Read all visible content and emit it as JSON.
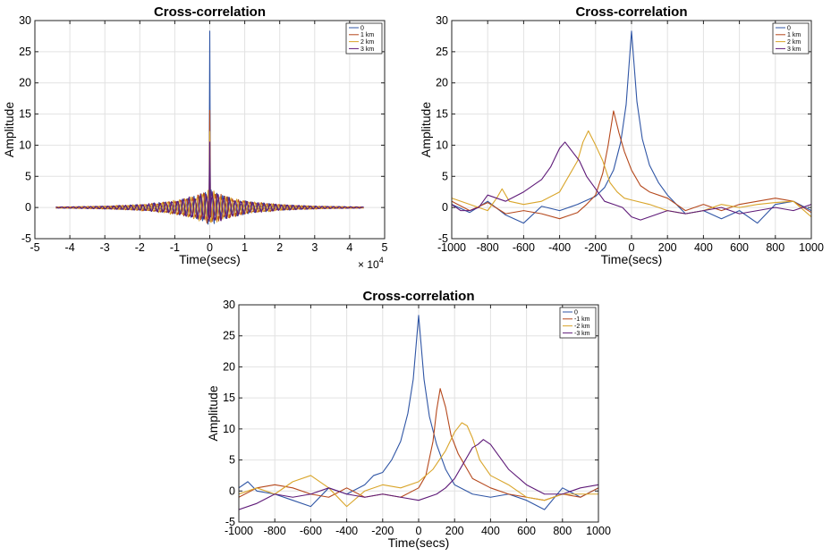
{
  "chart_data": [
    {
      "type": "line",
      "title": "Cross-correlation",
      "xlabel": "Time(secs)",
      "ylabel": "Amplitude",
      "xlim": [
        -5,
        5
      ],
      "ylim": [
        -5,
        30
      ],
      "xticks": [
        "-5",
        "-4",
        "-3",
        "-2",
        "-1",
        "0",
        "1",
        "2",
        "3",
        "4",
        "5"
      ],
      "yticks": [
        "-5",
        "0",
        "5",
        "10",
        "15",
        "20",
        "25",
        "30"
      ],
      "x_exponent_base": "× 10",
      "x_exponent_power": "4",
      "grid": true,
      "legend": "top-right",
      "legend_entries": [
        "0",
        "1 km",
        "2 km",
        "3 km"
      ],
      "series": [
        {
          "name": "0",
          "color": "#2f55a5",
          "peak_x": 0,
          "peak_y": 28.3
        },
        {
          "name": "1 km",
          "color": "#b5481c",
          "peak_x": 0,
          "peak_y": 15.6
        },
        {
          "name": "2 km",
          "color": "#d9a52a",
          "peak_x": 0,
          "peak_y": 12.2
        },
        {
          "name": "3 km",
          "color": "#5e1a78",
          "peak_x": 0,
          "peak_y": 10.5
        }
      ]
    },
    {
      "type": "line",
      "title": "Cross-correlation",
      "xlabel": "Time(secs)",
      "ylabel": "Amplitude",
      "xlim": [
        -1000,
        1000
      ],
      "ylim": [
        -5,
        30
      ],
      "xticks": [
        "-1000",
        "-800",
        "-600",
        "-400",
        "-200",
        "0",
        "200",
        "400",
        "600",
        "800",
        "1000"
      ],
      "yticks": [
        "-5",
        "0",
        "5",
        "10",
        "15",
        "20",
        "25",
        "30"
      ],
      "grid": true,
      "legend": "top-right",
      "legend_entries": [
        "0",
        "1 km",
        "2 km",
        "3 km"
      ],
      "series": [
        {
          "name": "0",
          "color": "#2f55a5",
          "x": [
            -1000,
            -900,
            -800,
            -700,
            -600,
            -500,
            -400,
            -300,
            -200,
            -150,
            -100,
            -60,
            -30,
            0,
            30,
            60,
            100,
            150,
            200,
            300,
            400,
            500,
            600,
            700,
            800,
            900,
            1000
          ],
          "y": [
            0.5,
            -0.8,
            1.0,
            -1.2,
            -2.5,
            0.2,
            -0.5,
            0.5,
            1.8,
            3.2,
            6.0,
            10.5,
            16.5,
            28.3,
            17.0,
            11.0,
            6.8,
            4.0,
            2.0,
            -1.0,
            -0.5,
            -1.8,
            -0.5,
            -2.5,
            0.5,
            1.0,
            -0.5
          ]
        },
        {
          "name": "1 km",
          "color": "#b5481c",
          "x": [
            -1000,
            -900,
            -800,
            -700,
            -600,
            -500,
            -400,
            -300,
            -250,
            -200,
            -160,
            -130,
            -100,
            -70,
            -40,
            0,
            50,
            100,
            200,
            300,
            400,
            500,
            600,
            700,
            800,
            900,
            1000
          ],
          "y": [
            1.0,
            -0.5,
            0.8,
            -1.0,
            -0.5,
            -1.0,
            -1.8,
            -0.8,
            0.5,
            2.0,
            5.5,
            10.0,
            15.5,
            12.0,
            9.0,
            6.0,
            3.5,
            2.5,
            1.5,
            -0.5,
            0.5,
            -0.5,
            0.5,
            1.0,
            1.5,
            1.0,
            -0.8
          ]
        },
        {
          "name": "2 km",
          "color": "#d9a52a",
          "x": [
            -1000,
            -900,
            -850,
            -800,
            -750,
            -720,
            -680,
            -600,
            -500,
            -400,
            -350,
            -300,
            -270,
            -240,
            -200,
            -160,
            -120,
            -80,
            -40,
            0,
            100,
            200,
            300,
            400,
            500,
            600,
            700,
            800,
            900,
            1000
          ],
          "y": [
            1.5,
            0.5,
            0.0,
            -0.5,
            1.5,
            3.0,
            1.0,
            0.5,
            1.0,
            2.5,
            5.0,
            7.5,
            10.5,
            12.3,
            10.0,
            7.5,
            4.0,
            2.5,
            1.5,
            1.2,
            0.5,
            -0.5,
            -1.0,
            -0.5,
            0.5,
            0.0,
            0.5,
            0.8,
            1.0,
            -1.5
          ]
        },
        {
          "name": "3 km",
          "color": "#5e1a78",
          "x": [
            -1000,
            -950,
            -900,
            -850,
            -800,
            -700,
            -600,
            -500,
            -450,
            -400,
            -370,
            -330,
            -290,
            -250,
            -200,
            -150,
            -100,
            -50,
            0,
            50,
            100,
            200,
            300,
            400,
            500,
            600,
            700,
            800,
            900,
            1000
          ],
          "y": [
            0.5,
            -0.5,
            -0.5,
            0.0,
            2.0,
            1.0,
            2.5,
            4.5,
            6.5,
            9.5,
            10.5,
            9.0,
            7.5,
            5.0,
            3.0,
            1.0,
            0.5,
            0.0,
            -1.5,
            -2.0,
            -1.5,
            -0.5,
            -1.0,
            -0.5,
            0.0,
            -1.0,
            -0.5,
            0.0,
            -0.5,
            0.5
          ]
        }
      ]
    },
    {
      "type": "line",
      "title": "Cross-correlation",
      "xlabel": "Time(secs)",
      "ylabel": "Amplitude",
      "xlim": [
        -1000,
        1000
      ],
      "ylim": [
        -5,
        30
      ],
      "xticks": [
        "-1000",
        "-800",
        "-600",
        "-400",
        "-200",
        "0",
        "200",
        "400",
        "600",
        "800",
        "1000"
      ],
      "yticks": [
        "-5",
        "0",
        "5",
        "10",
        "15",
        "20",
        "25",
        "30"
      ],
      "grid": true,
      "legend": "top-right",
      "legend_entries": [
        "0",
        "-1 km",
        "-2 km",
        "-3 km"
      ],
      "series": [
        {
          "name": "0",
          "color": "#2f55a5",
          "x": [
            -1000,
            -950,
            -900,
            -800,
            -700,
            -600,
            -500,
            -400,
            -300,
            -250,
            -200,
            -150,
            -100,
            -60,
            -30,
            0,
            30,
            60,
            100,
            150,
            200,
            300,
            400,
            500,
            600,
            700,
            800,
            900,
            1000
          ],
          "y": [
            0.5,
            1.5,
            0.0,
            -0.5,
            -1.5,
            -2.5,
            0.5,
            -0.5,
            1.0,
            2.5,
            3.0,
            5.0,
            8.0,
            12.5,
            18.0,
            28.3,
            18.0,
            12.0,
            7.5,
            3.5,
            1.0,
            -0.5,
            -1.0,
            -0.5,
            -1.5,
            -3.0,
            0.5,
            -1.0,
            0.5
          ]
        },
        {
          "name": "-1 km",
          "color": "#b5481c",
          "x": [
            -1000,
            -900,
            -800,
            -700,
            -600,
            -500,
            -400,
            -300,
            -200,
            -100,
            0,
            40,
            80,
            100,
            120,
            150,
            180,
            220,
            260,
            300,
            400,
            500,
            600,
            700,
            800,
            900,
            1000
          ],
          "y": [
            -1.0,
            0.5,
            1.0,
            0.5,
            -0.5,
            -1.0,
            0.5,
            -1.0,
            -0.5,
            -1.0,
            0.5,
            2.5,
            8.0,
            13.0,
            16.5,
            13.5,
            9.0,
            6.0,
            4.0,
            2.0,
            0.5,
            -0.5,
            -1.0,
            -1.5,
            -0.5,
            -1.0,
            0.5
          ]
        },
        {
          "name": "-2 km",
          "color": "#d9a52a",
          "x": [
            -1000,
            -900,
            -800,
            -700,
            -600,
            -500,
            -400,
            -300,
            -200,
            -100,
            0,
            80,
            150,
            200,
            240,
            270,
            300,
            340,
            400,
            500,
            600,
            700,
            800,
            900,
            1000
          ],
          "y": [
            -0.5,
            0.5,
            -0.5,
            1.5,
            2.5,
            0.5,
            -2.5,
            0.0,
            1.0,
            0.5,
            1.5,
            3.5,
            6.5,
            9.5,
            11.0,
            10.5,
            8.5,
            5.0,
            2.5,
            1.0,
            -1.0,
            -1.5,
            -0.5,
            -0.5,
            -0.5
          ]
        },
        {
          "name": "-3 km",
          "color": "#5e1a78",
          "x": [
            -1000,
            -900,
            -800,
            -700,
            -600,
            -500,
            -400,
            -300,
            -200,
            -100,
            0,
            100,
            150,
            200,
            250,
            300,
            330,
            360,
            400,
            450,
            500,
            600,
            700,
            800,
            900,
            1000
          ],
          "y": [
            -3.0,
            -2.0,
            -0.5,
            -1.0,
            -0.5,
            0.5,
            -0.5,
            -1.0,
            -0.5,
            -1.0,
            -1.5,
            -0.5,
            0.5,
            2.0,
            4.5,
            7.0,
            7.5,
            8.3,
            7.5,
            5.5,
            3.5,
            1.0,
            -0.5,
            -0.5,
            0.5,
            1.0
          ]
        }
      ]
    }
  ]
}
